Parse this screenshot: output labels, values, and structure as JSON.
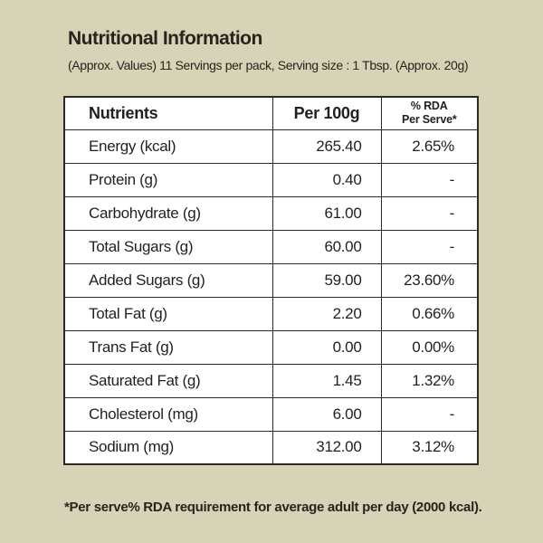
{
  "page": {
    "title": "Nutritional Information",
    "subtitle": "(Approx. Values) 11 Servings per pack, Serving size : 1 Tbsp. (Approx. 20g)",
    "footnote": "*Per serve% RDA requirement for average adult per day (2000 kcal)."
  },
  "colors": {
    "background": "#d6d3b6",
    "table_background": "#ffffff",
    "border": "#2b2a26",
    "text": "#26241d"
  },
  "table": {
    "columns": {
      "nutrients": "Nutrients",
      "per_100g": "Per 100g",
      "rda_line1": "% RDA",
      "rda_line2": "Per Serve*"
    },
    "rows": [
      {
        "nutrient": "Energy (kcal)",
        "per_100g": "265.40",
        "rda_per_serve": "2.65%"
      },
      {
        "nutrient": "Protein (g)",
        "per_100g": "0.40",
        "rda_per_serve": "-"
      },
      {
        "nutrient": "Carbohydrate (g)",
        "per_100g": "61.00",
        "rda_per_serve": "-"
      },
      {
        "nutrient": "Total Sugars (g)",
        "per_100g": "60.00",
        "rda_per_serve": "-"
      },
      {
        "nutrient": "Added Sugars (g)",
        "per_100g": "59.00",
        "rda_per_serve": "23.60%"
      },
      {
        "nutrient": "Total Fat (g)",
        "per_100g": "2.20",
        "rda_per_serve": "0.66%"
      },
      {
        "nutrient": "Trans Fat (g)",
        "per_100g": "0.00",
        "rda_per_serve": "0.00%"
      },
      {
        "nutrient": "Saturated Fat (g)",
        "per_100g": "1.45",
        "rda_per_serve": "1.32%"
      },
      {
        "nutrient": "Cholesterol (mg)",
        "per_100g": "6.00",
        "rda_per_serve": "-"
      },
      {
        "nutrient": "Sodium (mg)",
        "per_100g": "312.00",
        "rda_per_serve": "3.12%"
      }
    ]
  }
}
